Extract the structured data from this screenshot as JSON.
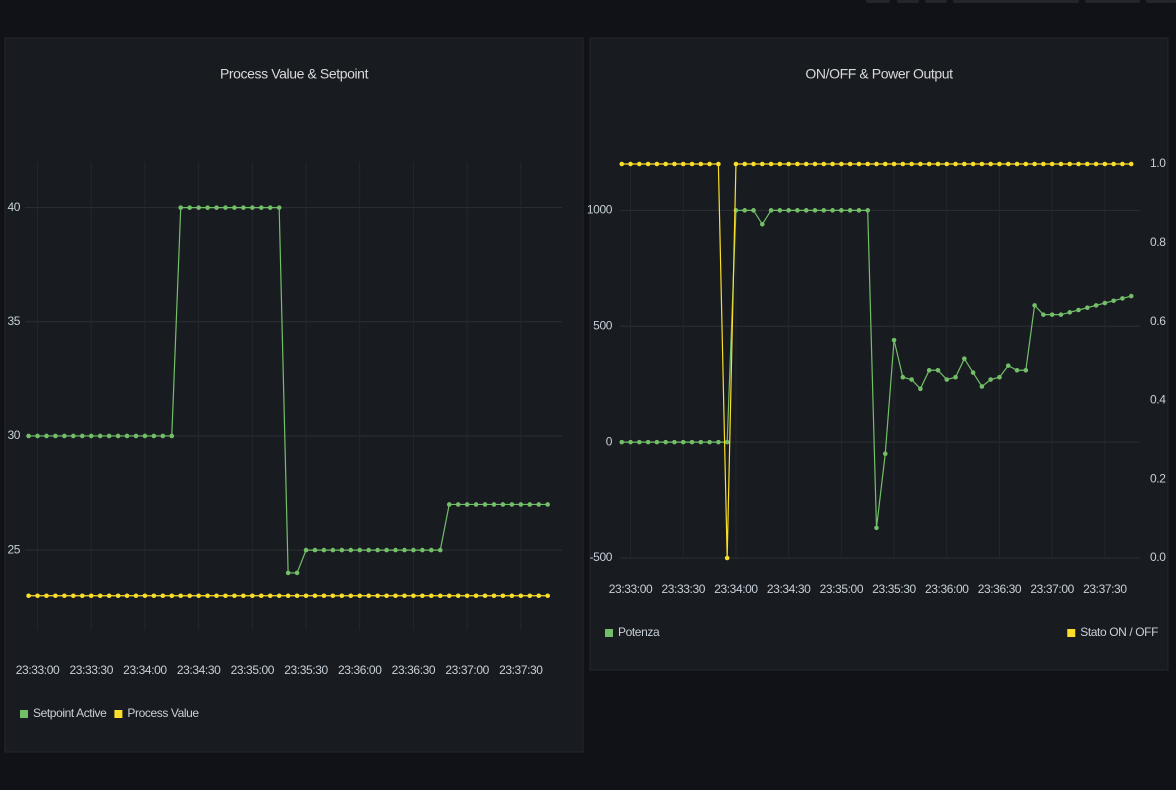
{
  "chart_data": [
    {
      "type": "line",
      "title": "Process Value & Setpoint",
      "x": [
        "23:32:55",
        "23:33:00",
        "23:33:05",
        "23:33:10",
        "23:33:15",
        "23:33:20",
        "23:33:25",
        "23:33:30",
        "23:33:35",
        "23:33:40",
        "23:33:45",
        "23:33:50",
        "23:33:55",
        "23:34:00",
        "23:34:05",
        "23:34:10",
        "23:34:15",
        "23:34:20",
        "23:34:25",
        "23:34:30",
        "23:34:35",
        "23:34:40",
        "23:34:45",
        "23:34:50",
        "23:34:55",
        "23:35:00",
        "23:35:05",
        "23:35:10",
        "23:35:15",
        "23:35:20",
        "23:35:25",
        "23:35:30",
        "23:35:35",
        "23:35:40",
        "23:35:45",
        "23:35:50",
        "23:35:55",
        "23:36:00",
        "23:36:05",
        "23:36:10",
        "23:36:15",
        "23:36:20",
        "23:36:25",
        "23:36:30",
        "23:36:35",
        "23:36:40",
        "23:36:45",
        "23:36:50",
        "23:36:55",
        "23:37:00",
        "23:37:05",
        "23:37:10",
        "23:37:15",
        "23:37:20",
        "23:37:25",
        "23:37:30",
        "23:37:35",
        "23:37:40",
        "23:37:45"
      ],
      "series": [
        {
          "name": "Setpoint Active",
          "color": "#73bf69",
          "values": [
            30,
            30,
            30,
            30,
            30,
            30,
            30,
            30,
            30,
            30,
            30,
            30,
            30,
            30,
            30,
            30,
            30,
            40,
            40,
            40,
            40,
            40,
            40,
            40,
            40,
            40,
            40,
            40,
            40,
            24,
            24,
            25,
            25,
            25,
            25,
            25,
            25,
            25,
            25,
            25,
            25,
            25,
            25,
            25,
            25,
            25,
            25,
            27,
            27,
            27,
            27,
            27,
            27,
            27,
            27,
            27,
            27,
            27,
            27
          ]
        },
        {
          "name": "Process Value",
          "color": "#fade2a",
          "values": [
            23,
            23,
            23,
            23,
            23,
            23,
            23,
            23,
            23,
            23,
            23,
            23,
            23,
            23,
            23,
            23,
            23,
            23,
            23,
            23,
            23,
            23,
            23,
            23,
            23,
            23,
            23,
            23,
            23,
            23,
            23,
            23,
            23,
            23,
            23,
            23,
            23,
            23,
            23,
            23,
            23,
            23,
            23,
            23,
            23,
            23,
            23,
            23,
            23,
            23,
            23,
            23,
            23,
            23,
            23,
            23,
            23,
            23,
            23
          ]
        }
      ],
      "xlim": [
        "23:32:53",
        "23:37:53"
      ],
      "xticks": [
        "23:33:00",
        "23:33:30",
        "23:34:00",
        "23:34:30",
        "23:35:00",
        "23:35:30",
        "23:36:00",
        "23:36:30",
        "23:37:00",
        "23:37:30"
      ],
      "ylim": [
        21.5,
        42
      ],
      "yticks": [
        25,
        30,
        35,
        40
      ],
      "grid": true,
      "legend": "bottom-left"
    },
    {
      "type": "line",
      "title": "ON/OFF & Power Output",
      "x": [
        "23:32:55",
        "23:33:00",
        "23:33:05",
        "23:33:10",
        "23:33:15",
        "23:33:20",
        "23:33:25",
        "23:33:30",
        "23:33:35",
        "23:33:40",
        "23:33:45",
        "23:33:50",
        "23:33:55",
        "23:34:00",
        "23:34:05",
        "23:34:10",
        "23:34:15",
        "23:34:20",
        "23:34:25",
        "23:34:30",
        "23:34:35",
        "23:34:40",
        "23:34:45",
        "23:34:50",
        "23:34:55",
        "23:35:00",
        "23:35:05",
        "23:35:10",
        "23:35:15",
        "23:35:20",
        "23:35:25",
        "23:35:30",
        "23:35:35",
        "23:35:40",
        "23:35:45",
        "23:35:50",
        "23:35:55",
        "23:36:00",
        "23:36:05",
        "23:36:10",
        "23:36:15",
        "23:36:20",
        "23:36:25",
        "23:36:30",
        "23:36:35",
        "23:36:40",
        "23:36:45",
        "23:36:50",
        "23:36:55",
        "23:37:00",
        "23:37:05",
        "23:37:10",
        "23:37:15",
        "23:37:20",
        "23:37:25",
        "23:37:30",
        "23:37:35",
        "23:37:40",
        "23:37:45"
      ],
      "series": [
        {
          "name": "Potenza",
          "color": "#73bf69",
          "values": [
            0,
            0,
            0,
            0,
            0,
            0,
            0,
            0,
            0,
            0,
            0,
            0,
            0,
            1000,
            1000,
            1000,
            940,
            1000,
            1000,
            1000,
            1000,
            1000,
            1000,
            1000,
            1000,
            1000,
            1000,
            1000,
            1000,
            -370,
            -50,
            440,
            280,
            270,
            230,
            310,
            310,
            270,
            280,
            360,
            300,
            240,
            270,
            280,
            330,
            310,
            310,
            590,
            550,
            550,
            550,
            560,
            570,
            580,
            590,
            600,
            610,
            620,
            630
          ]
        },
        {
          "name": "Stato ON / OFF",
          "color": "#fade2a",
          "axis": "y2",
          "values": [
            1,
            1,
            1,
            1,
            1,
            1,
            1,
            1,
            1,
            1,
            1,
            1,
            0,
            1,
            1,
            1,
            1,
            1,
            1,
            1,
            1,
            1,
            1,
            1,
            1,
            1,
            1,
            1,
            1,
            1,
            1,
            1,
            1,
            1,
            1,
            1,
            1,
            1,
            1,
            1,
            1,
            1,
            1,
            1,
            1,
            1,
            1,
            1,
            1,
            1,
            1,
            1,
            1,
            1,
            1,
            1,
            1,
            1,
            1
          ]
        }
      ],
      "xlim": [
        "23:32:54",
        "23:37:50"
      ],
      "xticks": [
        "23:33:00",
        "23:33:30",
        "23:34:00",
        "23:34:30",
        "23:35:00",
        "23:35:30",
        "23:36:00",
        "23:36:30",
        "23:37:00",
        "23:37:30"
      ],
      "ylim": [
        -500,
        1200
      ],
      "yticks": [
        -500,
        0,
        500,
        1000
      ],
      "y2lim": [
        0,
        1
      ],
      "y2ticks": [
        {
          "value": 0,
          "label": "0.0"
        },
        0.2,
        0.4,
        0.6,
        0.8,
        {
          "value": 1,
          "label": "1.0"
        }
      ],
      "grid": true,
      "legend": "bottom-split"
    }
  ]
}
